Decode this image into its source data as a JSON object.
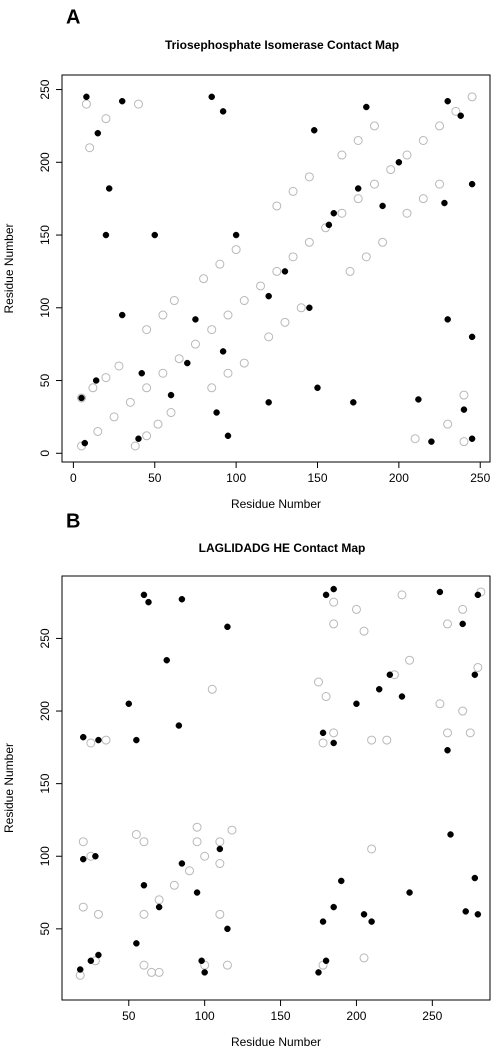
{
  "chart_data": [
    {
      "type": "scatter",
      "panel": "A",
      "title": "Triosephosphate Isomerase Contact Map",
      "xlabel": "Residue Number",
      "ylabel": "Residue Number",
      "xlim": [
        -7,
        256
      ],
      "ylim": [
        -6,
        260
      ],
      "xticks": [
        0,
        50,
        100,
        150,
        200,
        250
      ],
      "yticks": [
        0,
        50,
        100,
        150,
        200,
        250
      ],
      "series": [
        {
          "color": "#b8b8b8",
          "marker": "open",
          "x": [
            5,
            15,
            25,
            35,
            45,
            55,
            65,
            75,
            85,
            95,
            105,
            115,
            125,
            135,
            145,
            155,
            165,
            175,
            185,
            195,
            205,
            215,
            225,
            235,
            245,
            38,
            45,
            52,
            60,
            5,
            12,
            20,
            28,
            85,
            95,
            105,
            45,
            55,
            62,
            120,
            130,
            140,
            80,
            90,
            100,
            170,
            180,
            190,
            125,
            135,
            145,
            205,
            215,
            225,
            165,
            175,
            185,
            8,
            20,
            240,
            230,
            240,
            40,
            10,
            210
          ],
          "y": [
            5,
            15,
            25,
            35,
            45,
            55,
            65,
            75,
            85,
            95,
            105,
            115,
            125,
            135,
            145,
            155,
            165,
            175,
            185,
            195,
            205,
            215,
            225,
            235,
            245,
            5,
            12,
            20,
            28,
            38,
            45,
            52,
            60,
            45,
            55,
            62,
            85,
            95,
            105,
            80,
            90,
            100,
            120,
            130,
            140,
            125,
            135,
            145,
            170,
            180,
            190,
            165,
            175,
            185,
            205,
            215,
            225,
            240,
            230,
            8,
            20,
            40,
            240,
            210,
            10
          ]
        },
        {
          "color": "#000000",
          "marker": "filled",
          "x": [
            8,
            15,
            22,
            20,
            30,
            50,
            85,
            92,
            148,
            180,
            230,
            238,
            228,
            245,
            230,
            245,
            212,
            220,
            240,
            245,
            172,
            150,
            120,
            95,
            60,
            42,
            70,
            92,
            100,
            145,
            157,
            160,
            200,
            190,
            175,
            130,
            120,
            75,
            30,
            14,
            5,
            7,
            40,
            88
          ],
          "y": [
            245,
            220,
            182,
            150,
            242,
            150,
            245,
            235,
            222,
            238,
            242,
            232,
            172,
            185,
            92,
            80,
            37,
            8,
            30,
            10,
            35,
            45,
            35,
            12,
            40,
            55,
            62,
            70,
            150,
            100,
            157,
            165,
            200,
            170,
            182,
            125,
            108,
            92,
            95,
            50,
            38,
            7,
            10,
            28
          ]
        }
      ]
    },
    {
      "type": "scatter",
      "panel": "B",
      "title": "LAGLIDADG HE Contact Map",
      "xlabel": "Residue Number",
      "ylabel": "Residue Number",
      "xlim": [
        6,
        288
      ],
      "ylim": [
        1,
        293
      ],
      "xticks": [
        50,
        100,
        150,
        200,
        250
      ],
      "yticks": [
        50,
        100,
        150,
        200,
        250
      ],
      "series": [
        {
          "color": "#b8b8b8",
          "marker": "open",
          "x": [
            18,
            28,
            60,
            70,
            80,
            90,
            100,
            110,
            118,
            178,
            185,
            225,
            235,
            260,
            270,
            282,
            20,
            30,
            20,
            55,
            65,
            60,
            110,
            95,
            110,
            175,
            180,
            220,
            210,
            255,
            205,
            270,
            200,
            260,
            185,
            178,
            25,
            100,
            25,
            115,
            60,
            35,
            70,
            95,
            105,
            210,
            205,
            275,
            185,
            280,
            230
          ],
          "y": [
            18,
            28,
            60,
            70,
            80,
            90,
            100,
            110,
            118,
            178,
            185,
            225,
            235,
            260,
            270,
            282,
            65,
            60,
            110,
            115,
            20,
            110,
            60,
            110,
            95,
            220,
            210,
            180,
            180,
            205,
            255,
            200,
            270,
            185,
            260,
            25,
            178,
            25,
            100,
            25,
            25,
            180,
            20,
            120,
            215,
            105,
            30,
            185,
            275,
            230,
            280
          ]
        },
        {
          "color": "#000000",
          "marker": "filled",
          "x": [
            18,
            25,
            30,
            20,
            28,
            20,
            30,
            50,
            55,
            60,
            63,
            75,
            85,
            83,
            115,
            100,
            98,
            115,
            60,
            70,
            85,
            110,
            95,
            55,
            180,
            185,
            178,
            185,
            200,
            215,
            222,
            230,
            205,
            210,
            175,
            180,
            178,
            185,
            190,
            235,
            262,
            272,
            278,
            280,
            260,
            278,
            270,
            280,
            255
          ],
          "y": [
            22,
            28,
            32,
            98,
            100,
            182,
            180,
            205,
            180,
            280,
            275,
            235,
            277,
            190,
            258,
            20,
            28,
            50,
            80,
            65,
            95,
            105,
            75,
            40,
            280,
            284,
            185,
            178,
            205,
            215,
            225,
            210,
            60,
            55,
            20,
            28,
            55,
            65,
            83,
            75,
            115,
            62,
            85,
            60,
            173,
            225,
            260,
            280,
            282
          ]
        }
      ]
    }
  ]
}
